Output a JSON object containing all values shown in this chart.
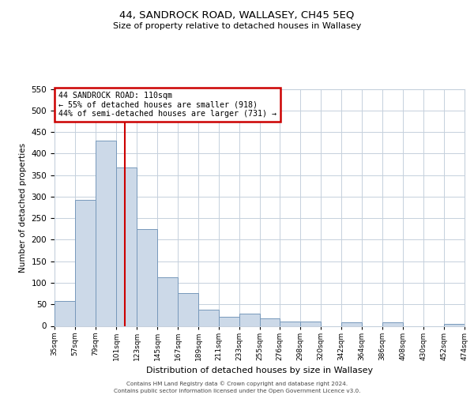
{
  "title": "44, SANDROCK ROAD, WALLASEY, CH45 5EQ",
  "subtitle": "Size of property relative to detached houses in Wallasey",
  "xlabel": "Distribution of detached houses by size in Wallasey",
  "ylabel": "Number of detached properties",
  "bar_color": "#ccd9e8",
  "bar_edge_color": "#7799bb",
  "background_color": "#ffffff",
  "grid_color": "#c5d0dc",
  "annotation_box_color": "#cc0000",
  "vline_color": "#cc0000",
  "vline_x": 110,
  "annotation_title": "44 SANDROCK ROAD: 110sqm",
  "annotation_line1": "← 55% of detached houses are smaller (918)",
  "annotation_line2": "44% of semi-detached houses are larger (731) →",
  "bin_edges": [
    35,
    57,
    79,
    101,
    123,
    145,
    167,
    189,
    211,
    233,
    255,
    276,
    298,
    320,
    342,
    364,
    386,
    408,
    430,
    452,
    474
  ],
  "bin_counts": [
    57,
    293,
    430,
    368,
    225,
    113,
    76,
    38,
    21,
    29,
    17,
    10,
    10,
    0,
    8,
    0,
    8,
    0,
    0,
    5
  ],
  "ylim": [
    0,
    550
  ],
  "yticks": [
    0,
    50,
    100,
    150,
    200,
    250,
    300,
    350,
    400,
    450,
    500,
    550
  ],
  "footer_line1": "Contains HM Land Registry data © Crown copyright and database right 2024.",
  "footer_line2": "Contains public sector information licensed under the Open Government Licence v3.0."
}
